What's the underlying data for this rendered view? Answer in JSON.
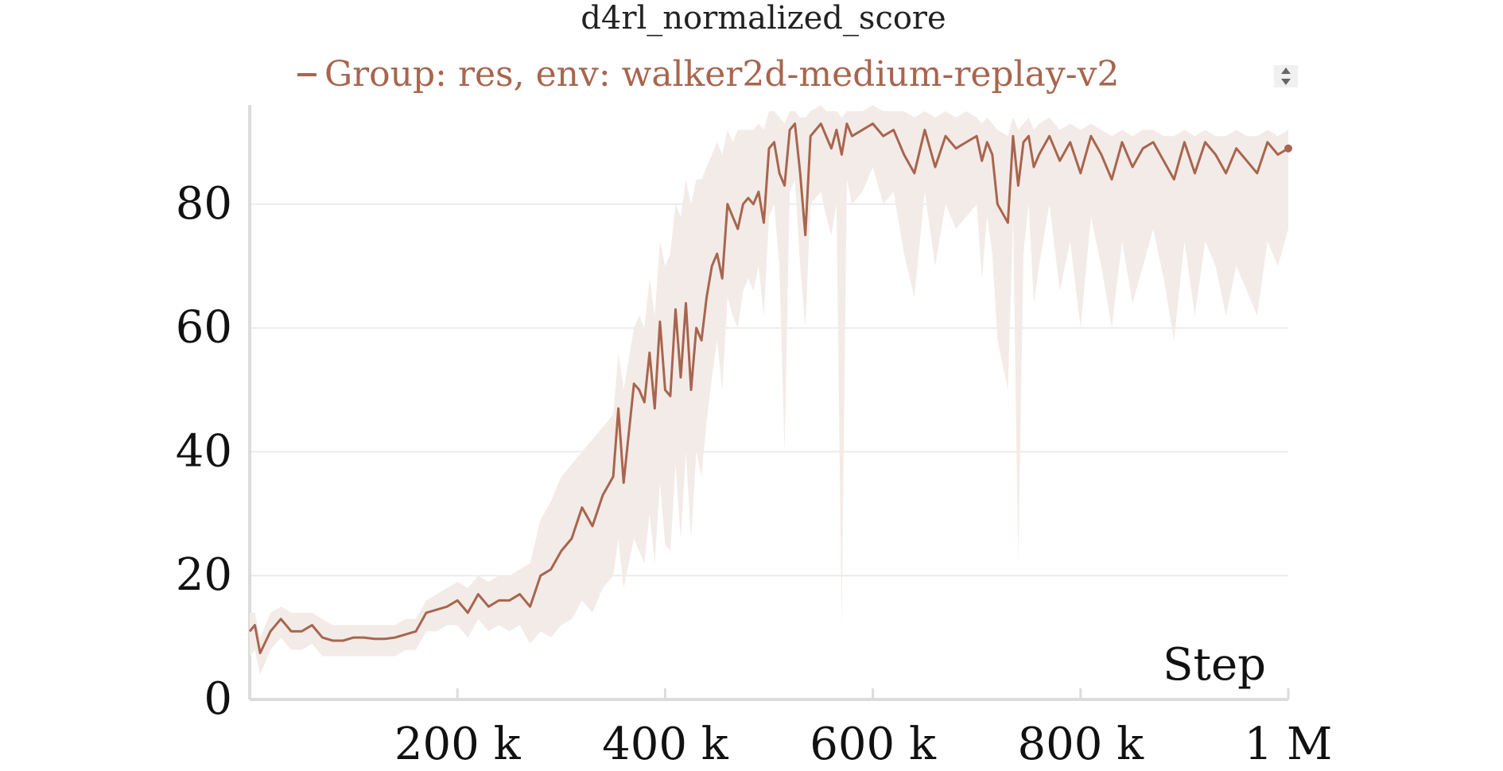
{
  "chart_data": {
    "type": "line",
    "title": "d4rl_normalized_score",
    "xlabel": "Step",
    "ylabel": "",
    "xlim": [
      0,
      1000000
    ],
    "ylim": [
      0,
      95
    ],
    "grid": true,
    "legend_position": "top",
    "x_ticks": [
      {
        "value": 200000,
        "label": "200 k"
      },
      {
        "value": 400000,
        "label": "400 k"
      },
      {
        "value": 600000,
        "label": "600 k"
      },
      {
        "value": 800000,
        "label": "800 k"
      },
      {
        "value": 1000000,
        "label": "1 M"
      }
    ],
    "y_ticks": [
      {
        "value": 0,
        "label": "0"
      },
      {
        "value": 20,
        "label": "20"
      },
      {
        "value": 40,
        "label": "40"
      },
      {
        "value": 60,
        "label": "60"
      },
      {
        "value": 80,
        "label": "80"
      }
    ],
    "series": [
      {
        "name": "Group: res, env: walker2d-medium-replay-v2",
        "color": "#a8654e",
        "band_color": "#f3ebe7",
        "x": [
          0,
          5000,
          10000,
          20000,
          30000,
          40000,
          50000,
          60000,
          70000,
          80000,
          90000,
          100000,
          110000,
          120000,
          130000,
          140000,
          150000,
          160000,
          170000,
          180000,
          190000,
          200000,
          210000,
          220000,
          230000,
          240000,
          250000,
          260000,
          270000,
          280000,
          290000,
          300000,
          310000,
          320000,
          330000,
          340000,
          350000,
          355000,
          360000,
          370000,
          375000,
          380000,
          385000,
          390000,
          395000,
          400000,
          405000,
          410000,
          415000,
          420000,
          425000,
          430000,
          435000,
          440000,
          445000,
          450000,
          455000,
          460000,
          465000,
          470000,
          475000,
          480000,
          485000,
          490000,
          495000,
          500000,
          505000,
          510000,
          515000,
          520000,
          525000,
          530000,
          535000,
          540000,
          550000,
          555000,
          560000,
          565000,
          570000,
          575000,
          580000,
          590000,
          600000,
          610000,
          620000,
          630000,
          640000,
          650000,
          660000,
          670000,
          680000,
          690000,
          700000,
          705000,
          710000,
          715000,
          720000,
          730000,
          735000,
          740000,
          745000,
          750000,
          755000,
          760000,
          770000,
          780000,
          790000,
          800000,
          810000,
          820000,
          830000,
          840000,
          850000,
          860000,
          870000,
          880000,
          890000,
          900000,
          910000,
          920000,
          930000,
          940000,
          950000,
          960000,
          970000,
          980000,
          990000,
          1000000
        ],
        "y": [
          11,
          12,
          7.5,
          11,
          13,
          11,
          11,
          12,
          10,
          9.5,
          9.5,
          10,
          10,
          9.8,
          9.8,
          10,
          10.5,
          11,
          14,
          14.5,
          15,
          16,
          14,
          17,
          15,
          16,
          16,
          17,
          15,
          20,
          21,
          24,
          26,
          31,
          28,
          33,
          36,
          47,
          35,
          51,
          50,
          48,
          56,
          47,
          61,
          50,
          49,
          63,
          52,
          64,
          50,
          60,
          58,
          65,
          70,
          72,
          68,
          80,
          78,
          76,
          80,
          81,
          80,
          82,
          77,
          89,
          90,
          85,
          83,
          92,
          93,
          85,
          75,
          91,
          93,
          91,
          89,
          92,
          88,
          93,
          91,
          92,
          93,
          91,
          92,
          88,
          85,
          92,
          86,
          91,
          89,
          90,
          91,
          87,
          90,
          88,
          80,
          77,
          91,
          83,
          90,
          91,
          86,
          88,
          91,
          87,
          90,
          85,
          91,
          88,
          84,
          90,
          86,
          89,
          90,
          87,
          84,
          90,
          85,
          90,
          88,
          85,
          89,
          87,
          85,
          90,
          88,
          89
        ],
        "y_upper": [
          14,
          14,
          10,
          14,
          15,
          14,
          14,
          14,
          13,
          12,
          12,
          12,
          12,
          12,
          12,
          12,
          13,
          13,
          16,
          17,
          18,
          19,
          18,
          20,
          19,
          20,
          20,
          21,
          22,
          29,
          32,
          36,
          38,
          40,
          42,
          44,
          46,
          56,
          50,
          60,
          62,
          60,
          68,
          62,
          74,
          70,
          72,
          80,
          78,
          84,
          80,
          84,
          84,
          86,
          88,
          90,
          88,
          92,
          90,
          92,
          92,
          92,
          92,
          93,
          92,
          95,
          95,
          94,
          93,
          95,
          95,
          94,
          94,
          95,
          96,
          95,
          95,
          95,
          94,
          95,
          95,
          95,
          96,
          95,
          95,
          95,
          94,
          95,
          94,
          95,
          94,
          95,
          94,
          93,
          94,
          93,
          92,
          91,
          94,
          92,
          93,
          94,
          92,
          93,
          94,
          92,
          93,
          92,
          93,
          92,
          91,
          92,
          91,
          92,
          92,
          91,
          91,
          92,
          91,
          92,
          91,
          91,
          92,
          91,
          91,
          92,
          91,
          92
        ],
        "y_lower": [
          7,
          8,
          4,
          8,
          10,
          8,
          8,
          9,
          7,
          7,
          7,
          7,
          7,
          7,
          7,
          7,
          8,
          8,
          11,
          11,
          12,
          12,
          10,
          13,
          11,
          12,
          11,
          12,
          9,
          11,
          10,
          12,
          13,
          16,
          14,
          18,
          20,
          26,
          18,
          26,
          24,
          22,
          30,
          22,
          35,
          25,
          24,
          38,
          26,
          40,
          26,
          40,
          36,
          45,
          52,
          58,
          50,
          65,
          62,
          60,
          66,
          68,
          66,
          70,
          62,
          78,
          80,
          70,
          40,
          82,
          84,
          70,
          60,
          80,
          82,
          78,
          75,
          80,
          12,
          84,
          80,
          82,
          86,
          80,
          82,
          72,
          65,
          82,
          70,
          80,
          76,
          78,
          80,
          68,
          78,
          72,
          58,
          50,
          78,
          22,
          72,
          80,
          64,
          70,
          80,
          66,
          74,
          60,
          78,
          70,
          60,
          74,
          64,
          70,
          76,
          68,
          58,
          74,
          62,
          74,
          70,
          62,
          70,
          66,
          62,
          74,
          70,
          76
        ]
      }
    ]
  }
}
